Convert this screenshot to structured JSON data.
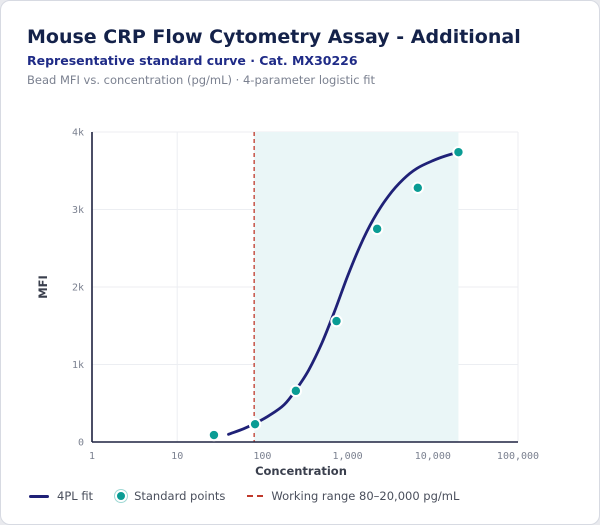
{
  "header": {
    "title": "Mouse CRP Flow Cytometry Assay - Additional",
    "subtitle": "Representative standard curve · Cat. MX30226",
    "description": "Bead MFI vs. concentration (pg/mL) · 4-parameter logistic fit"
  },
  "legend": {
    "fit_label": "4PL fit",
    "points_label": "Standard points",
    "range_label": "Working range 80–20,000 pg/mL"
  },
  "colors": {
    "fit_line": "#1f2177",
    "points": "#0a9c94",
    "range_line": "#c0392b",
    "range_fill": "#eaf6f7"
  },
  "chart_data": {
    "type": "scatter",
    "xlabel": "Concentration",
    "ylabel": "MFI",
    "x_scale": "log",
    "xlim": [
      1,
      100000
    ],
    "ylim": [
      0,
      4000
    ],
    "x_ticks": [
      1,
      10,
      100,
      1000,
      10000,
      100000
    ],
    "x_tick_labels": [
      "1",
      "10",
      "100",
      "1,000",
      "10,000",
      "100,000"
    ],
    "y_ticks": [
      0,
      1000,
      2000,
      3000,
      4000
    ],
    "y_tick_labels": [
      "0",
      "1k",
      "2k",
      "3k",
      "4k"
    ],
    "grid": true,
    "working_range": [
      80,
      20000
    ],
    "series": [
      {
        "name": "Standard points",
        "kind": "points",
        "x": [
          27,
          82,
          247,
          741,
          2222,
          6667,
          20000
        ],
        "y": [
          90,
          230,
          660,
          1560,
          2750,
          3280,
          3740
        ]
      },
      {
        "name": "4PL fit",
        "kind": "line",
        "x": [
          40,
          60,
          82,
          120,
          180,
          250,
          350,
          500,
          700,
          1000,
          1400,
          2000,
          3000,
          4500,
          6500,
          10000,
          14000,
          20000
        ],
        "y": [
          100,
          170,
          240,
          340,
          480,
          680,
          930,
          1280,
          1680,
          2140,
          2530,
          2870,
          3170,
          3390,
          3530,
          3630,
          3690,
          3740
        ]
      }
    ]
  }
}
